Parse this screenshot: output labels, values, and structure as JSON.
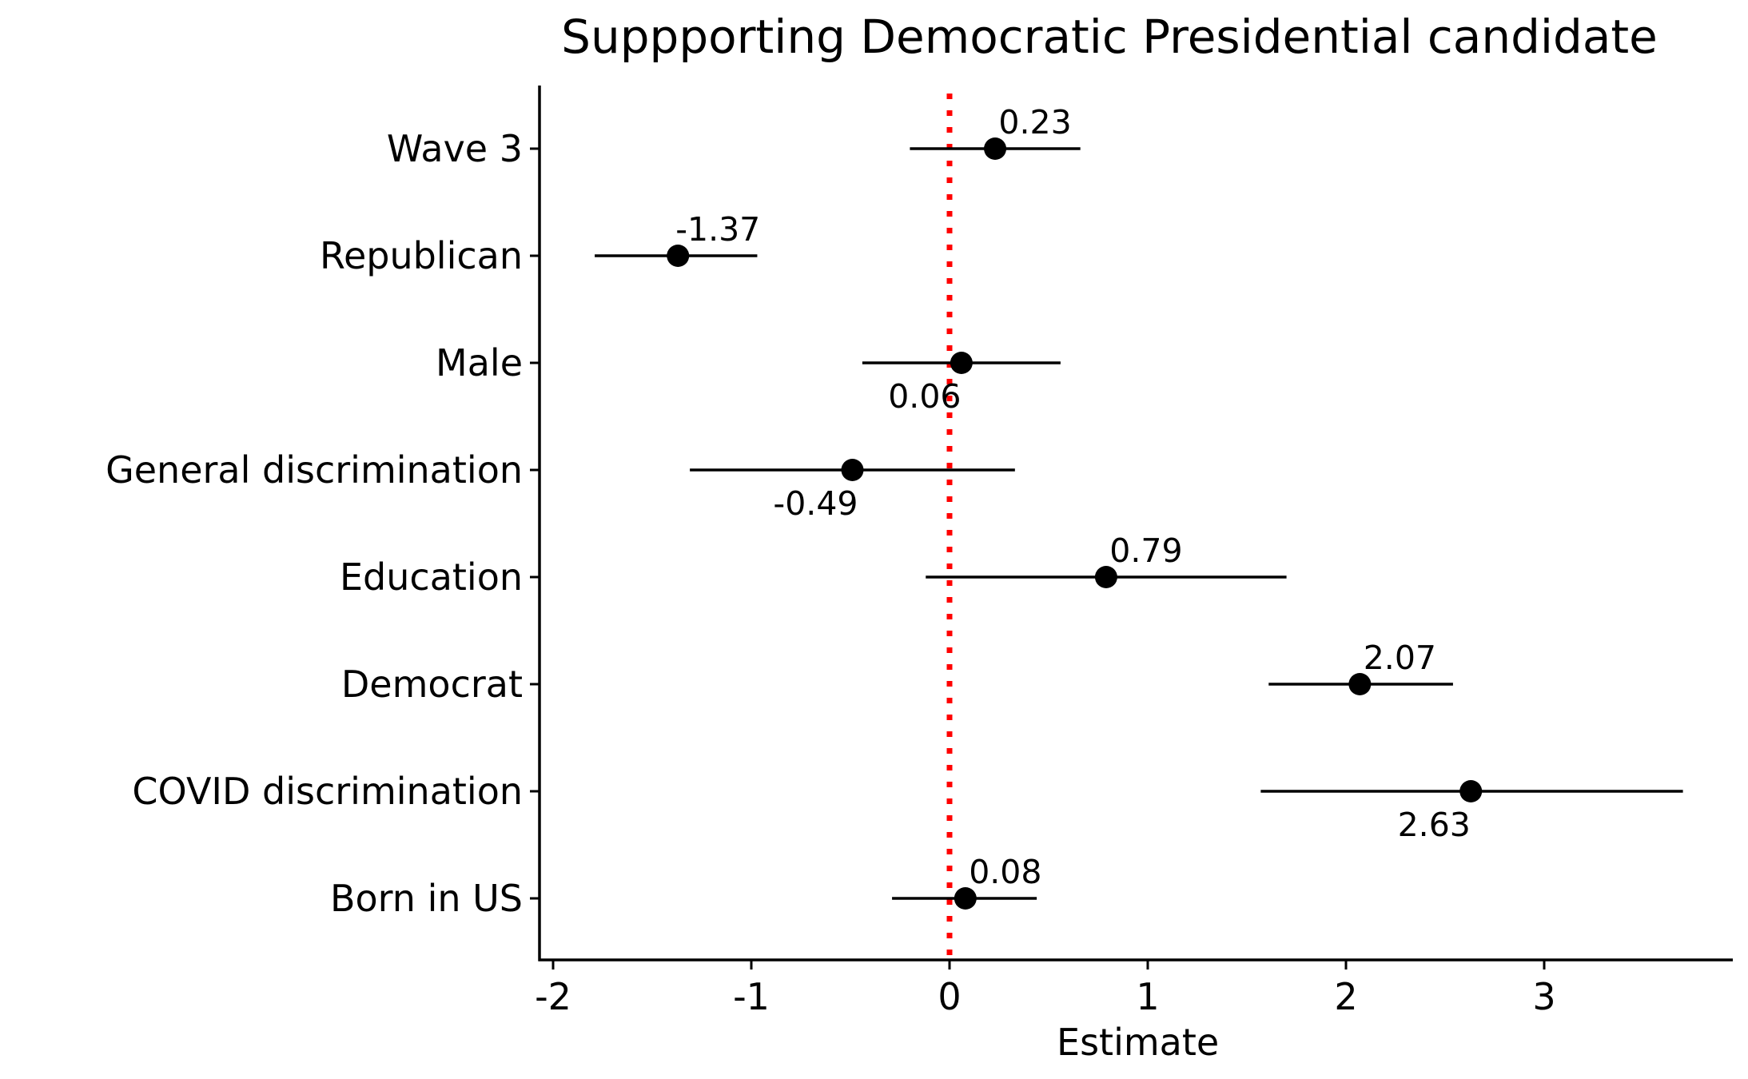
{
  "chart_data": {
    "type": "scatter",
    "subtype": "coefficient-plot",
    "title": "Suppporting Democratic Presidential candidate",
    "xlabel": "Estimate",
    "ylabel": "",
    "xlim": [
      -2.08,
      3.95
    ],
    "x_ticks": [
      -2,
      -1,
      0,
      1,
      2,
      3
    ],
    "x_tick_labels": [
      "-2",
      "-1",
      "0",
      "1",
      "2",
      "3"
    ],
    "reference_line": {
      "x": 0,
      "color": "#ff0000",
      "style": "dotted"
    },
    "point_color": "#000000",
    "grid": false,
    "legend": "none",
    "points": [
      {
        "label": "Wave 3",
        "estimate": 0.23,
        "low": -0.2,
        "high": 0.66,
        "value_label": "0.23",
        "label_side": "above"
      },
      {
        "label": "Republican",
        "estimate": -1.37,
        "low": -1.79,
        "high": -0.97,
        "value_label": "-1.37",
        "label_side": "above"
      },
      {
        "label": "Male",
        "estimate": 0.06,
        "low": -0.44,
        "high": 0.56,
        "value_label": "0.06",
        "label_side": "below"
      },
      {
        "label": "General discrimination",
        "estimate": -0.49,
        "low": -1.31,
        "high": 0.33,
        "value_label": "-0.49",
        "label_side": "below"
      },
      {
        "label": "Education",
        "estimate": 0.79,
        "low": -0.12,
        "high": 1.7,
        "value_label": "0.79",
        "label_side": "above"
      },
      {
        "label": "Democrat",
        "estimate": 2.07,
        "low": 1.61,
        "high": 2.54,
        "value_label": "2.07",
        "label_side": "above"
      },
      {
        "label": "COVID discrimination",
        "estimate": 2.63,
        "low": 1.57,
        "high": 3.7,
        "value_label": "2.63",
        "label_side": "below"
      },
      {
        "label": "Born in US",
        "estimate": 0.08,
        "low": -0.29,
        "high": 0.44,
        "value_label": "0.08",
        "label_side": "above"
      }
    ]
  }
}
